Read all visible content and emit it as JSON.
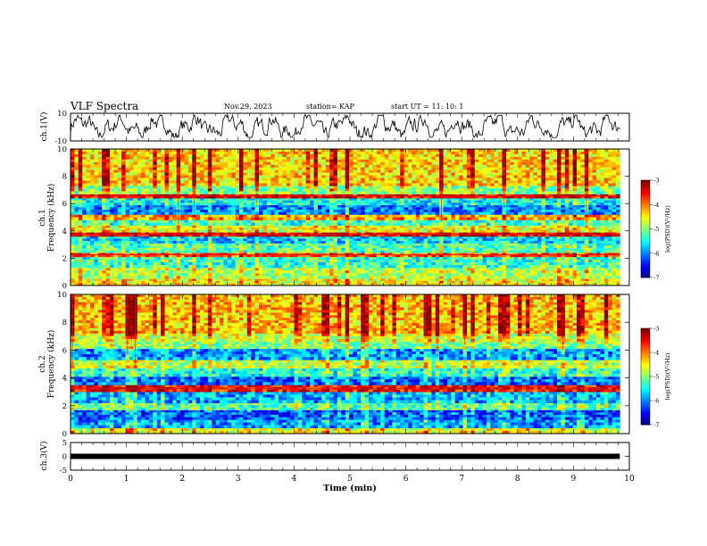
{
  "header": {
    "title": "VLF Spectra",
    "date": "Nov.29, 2023",
    "station": "station= KAP",
    "start": "start  UT =   11: 10: 1"
  },
  "chart_data": [
    {
      "type": "line",
      "panel": "ch1-waveform",
      "ylabel": "ch.1(V)",
      "ylim": [
        -10,
        10
      ],
      "yticks": [
        "10",
        "-10"
      ],
      "xlim": [
        0,
        10
      ],
      "data_extent_min": 9.83,
      "color": "#000000"
    },
    {
      "type": "heatmap",
      "panel": "ch1-spectrogram",
      "ylabel": "ch.1\nFrequency (kHz)",
      "ylim": [
        0,
        10
      ],
      "yticks": [
        "0",
        "2",
        "4",
        "6",
        "8",
        "10"
      ],
      "xlim": [
        0,
        10
      ],
      "colorbar": {
        "label": "log(PSD)(V²/Hz)",
        "range": [
          -7,
          -3
        ],
        "ticks": [
          "-3",
          "-4",
          "-5",
          "-6",
          "-7"
        ]
      },
      "bands_khz": [
        {
          "lo": 0.0,
          "hi": 0.5,
          "level": 0.62
        },
        {
          "lo": 0.5,
          "hi": 1.3,
          "level": 0.55
        },
        {
          "lo": 1.3,
          "hi": 2.1,
          "level": 0.42
        },
        {
          "lo": 2.1,
          "hi": 2.4,
          "level": 0.78
        },
        {
          "lo": 2.4,
          "hi": 3.1,
          "level": 0.45
        },
        {
          "lo": 3.1,
          "hi": 3.6,
          "level": 0.33
        },
        {
          "lo": 3.6,
          "hi": 3.9,
          "level": 0.9
        },
        {
          "lo": 3.9,
          "hi": 4.4,
          "level": 0.6
        },
        {
          "lo": 4.4,
          "hi": 4.8,
          "level": 0.42
        },
        {
          "lo": 4.8,
          "hi": 5.2,
          "level": 0.7
        },
        {
          "lo": 5.2,
          "hi": 5.9,
          "level": 0.25
        },
        {
          "lo": 5.9,
          "hi": 6.4,
          "level": 0.38
        },
        {
          "lo": 6.4,
          "hi": 6.7,
          "level": 0.88
        },
        {
          "lo": 6.7,
          "hi": 7.3,
          "level": 0.5
        },
        {
          "lo": 7.3,
          "hi": 10.0,
          "level": 0.66
        }
      ]
    },
    {
      "type": "heatmap",
      "panel": "ch2-spectrogram",
      "ylabel": "ch.2\nFrequency (kHz)",
      "ylim": [
        0,
        10
      ],
      "yticks": [
        "0",
        "2",
        "4",
        "6",
        "8",
        "10"
      ],
      "xlim": [
        0,
        10
      ],
      "colorbar": {
        "label": "log(PSD)(V²/Hz)",
        "range": [
          -7,
          -3
        ],
        "ticks": [
          "-3",
          "-4",
          "-5",
          "-6",
          "-7"
        ]
      },
      "bands_khz": [
        {
          "lo": 0.0,
          "hi": 0.4,
          "level": 0.6
        },
        {
          "lo": 0.4,
          "hi": 1.0,
          "level": 0.28
        },
        {
          "lo": 1.0,
          "hi": 1.7,
          "level": 0.2
        },
        {
          "lo": 1.7,
          "hi": 2.2,
          "level": 0.45
        },
        {
          "lo": 2.2,
          "hi": 3.0,
          "level": 0.3
        },
        {
          "lo": 3.0,
          "hi": 3.5,
          "level": 0.85
        },
        {
          "lo": 3.5,
          "hi": 4.1,
          "level": 0.22
        },
        {
          "lo": 4.1,
          "hi": 4.7,
          "level": 0.4
        },
        {
          "lo": 4.7,
          "hi": 5.3,
          "level": 0.55
        },
        {
          "lo": 5.3,
          "hi": 6.1,
          "level": 0.27
        },
        {
          "lo": 6.1,
          "hi": 6.6,
          "level": 0.5
        },
        {
          "lo": 6.6,
          "hi": 7.2,
          "level": 0.58
        },
        {
          "lo": 7.2,
          "hi": 10.0,
          "level": 0.68
        }
      ]
    },
    {
      "type": "line",
      "panel": "ch3-level",
      "ylabel": "ch.3(V)",
      "ylim": [
        -5,
        5
      ],
      "yticks": [
        "5",
        "0",
        "-5"
      ],
      "xlim": [
        0,
        10
      ],
      "xlabel": "Time  (min)",
      "xticks": [
        "0",
        "1",
        "2",
        "3",
        "4",
        "5",
        "6",
        "7",
        "8",
        "9",
        "10"
      ],
      "constant_value": 0,
      "data_extent_min": 9.83,
      "color": "#000000"
    }
  ]
}
